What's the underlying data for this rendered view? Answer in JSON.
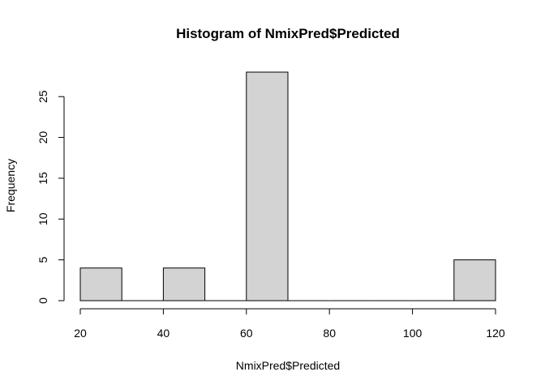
{
  "chart_data": {
    "type": "bar",
    "title": "Histogram of NmixPred$Predicted",
    "xlabel": "NmixPred$Predicted",
    "ylabel": "Frequency",
    "bins": [
      {
        "start": 20,
        "end": 30,
        "count": 4
      },
      {
        "start": 30,
        "end": 40,
        "count": 0
      },
      {
        "start": 40,
        "end": 50,
        "count": 4
      },
      {
        "start": 50,
        "end": 60,
        "count": 0
      },
      {
        "start": 60,
        "end": 70,
        "count": 28
      },
      {
        "start": 70,
        "end": 80,
        "count": 0
      },
      {
        "start": 80,
        "end": 90,
        "count": 0
      },
      {
        "start": 90,
        "end": 100,
        "count": 0
      },
      {
        "start": 100,
        "end": 110,
        "count": 0
      },
      {
        "start": 110,
        "end": 120,
        "count": 5
      }
    ],
    "x_ticks": [
      20,
      40,
      60,
      80,
      100,
      120
    ],
    "y_ticks": [
      0,
      5,
      10,
      15,
      20,
      25
    ],
    "xlim": [
      20,
      120
    ],
    "ylim": [
      0,
      28
    ],
    "bar_color": "#d3d3d3",
    "edge_color": "#000000",
    "grid": false
  }
}
